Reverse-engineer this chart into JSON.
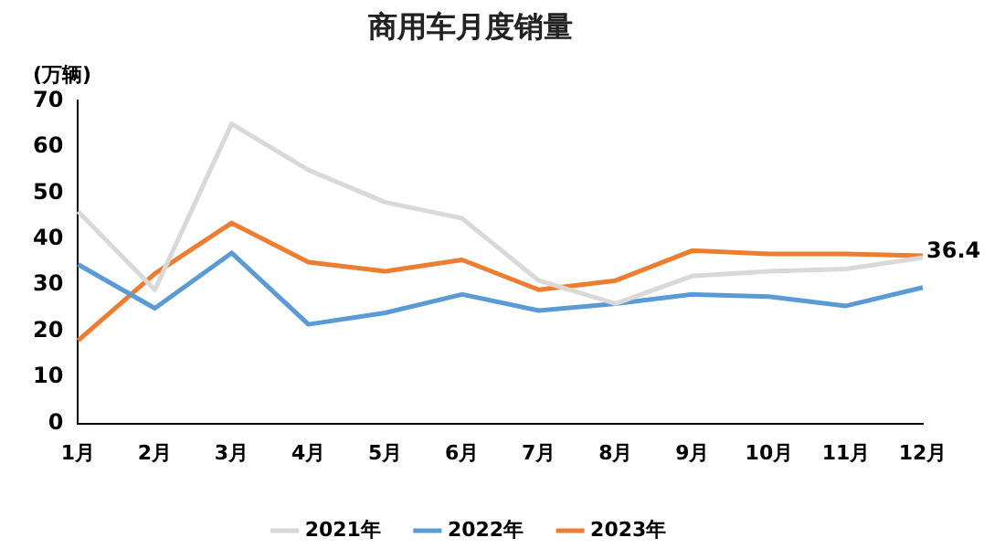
{
  "chart_data": {
    "type": "line",
    "title": "商用车月度销量",
    "ylabel": "(万辆)",
    "categories": [
      "1月",
      "2月",
      "3月",
      "4月",
      "5月",
      "6月",
      "7月",
      "8月",
      "9月",
      "10月",
      "11月",
      "12月"
    ],
    "series": [
      {
        "name": "2021年",
        "color": "#d9d9d9",
        "values": [
          46,
          29,
          65,
          55,
          48,
          44.5,
          31,
          26,
          32,
          33,
          33.5,
          36
        ]
      },
      {
        "name": "2022年",
        "color": "#5b9bd5",
        "values": [
          34.5,
          25,
          37,
          21.5,
          24,
          28,
          24.5,
          26,
          28,
          27.5,
          25.5,
          29.5
        ]
      },
      {
        "name": "2023年",
        "color": "#ed7d31",
        "values": [
          18,
          32.5,
          43.5,
          35,
          33,
          35.5,
          29,
          31,
          37.5,
          36.8,
          36.8,
          36.4
        ],
        "value_labels": [
          null,
          null,
          null,
          null,
          null,
          null,
          null,
          null,
          null,
          null,
          null,
          "36.4"
        ]
      }
    ],
    "ylim": [
      0,
      70
    ],
    "yticks": [
      0,
      10,
      20,
      30,
      40,
      50,
      60,
      70
    ],
    "grid": false,
    "legend": "bottom",
    "marker": "none",
    "line_style": "solid"
  }
}
